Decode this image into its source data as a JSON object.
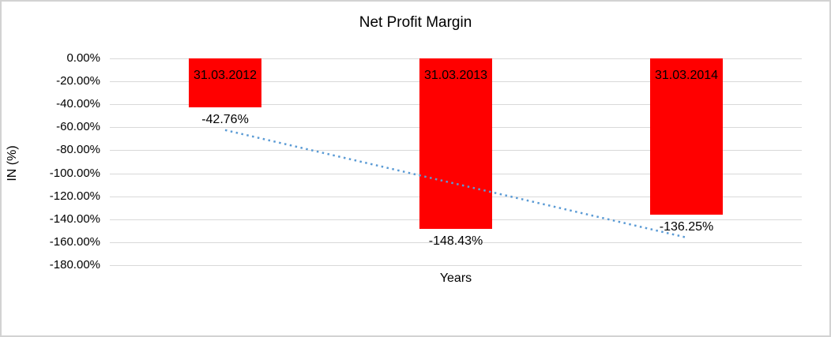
{
  "chart_data": {
    "type": "bar",
    "title": "Net Profit Margin",
    "xlabel": "Years",
    "ylabel": "IN (%)",
    "categories": [
      "31.03.2012",
      "31.03.2013",
      "31.03.2014"
    ],
    "values": [
      -42.76,
      -148.43,
      -136.25
    ],
    "data_labels": [
      "-42.76%",
      "-148.43%",
      "-136.25%"
    ],
    "category_label_position": "inside-bar-top",
    "data_label_position": "below-bar",
    "ylim": [
      -180,
      0
    ],
    "ytick_interval": 20,
    "ytick_labels": [
      "0.00%",
      "-20.00%",
      "-40.00%",
      "-60.00%",
      "-80.00%",
      "-100.00%",
      "-120.00%",
      "-140.00%",
      "-160.00%",
      "-180.00%"
    ],
    "grid": true,
    "legend": "none",
    "bar_color": "#FF0000",
    "gridline_color": "#d9d9d9",
    "trendline": {
      "type": "linear",
      "style": "dotted",
      "color": "#5B9BD5",
      "start_value": -62.4,
      "end_value": -155.9
    }
  }
}
